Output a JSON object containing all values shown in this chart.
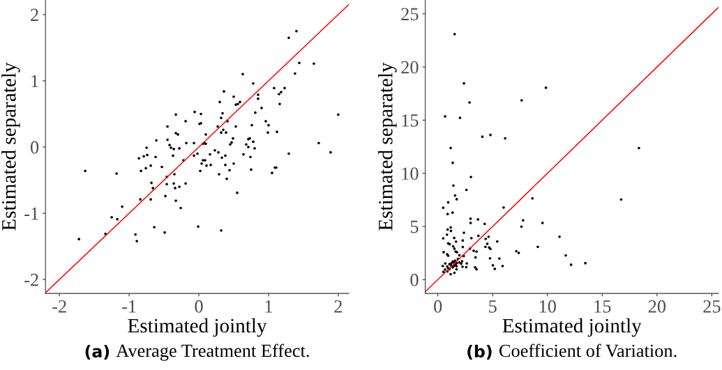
{
  "chart_data": [
    {
      "type": "scatter",
      "xlabel": "Estimated jointly",
      "ylabel": "Estimated separately",
      "annotations": [
        "(a) Average Treatment Effect."
      ],
      "xlim": [
        -2.2,
        2.15
      ],
      "ylim": [
        -2.21,
        2.22
      ],
      "xticks": [
        -2,
        -1,
        0,
        1,
        2
      ],
      "yticks": [
        -2,
        -1,
        0,
        1,
        2
      ],
      "grid": false,
      "series": [
        {
          "color": "#000000",
          "marker": "circle",
          "x": [
            -1.72,
            -1.63,
            -1.34,
            -1.25,
            -1.18,
            -1.17,
            -1.1,
            -0.91,
            -0.89,
            -0.86,
            -0.84,
            -0.83,
            -0.79,
            -0.76,
            -0.75,
            -0.74,
            -0.69,
            -0.69,
            -0.68,
            -0.66,
            -0.64,
            -0.62,
            -0.61,
            -0.53,
            -0.49,
            -0.48,
            -0.46,
            -0.46,
            -0.45,
            -0.45,
            -0.42,
            -0.4,
            -0.37,
            -0.36,
            -0.36,
            -0.35,
            -0.34,
            -0.33,
            -0.33,
            -0.33,
            -0.3,
            -0.28,
            -0.28,
            -0.26,
            -0.22,
            -0.19,
            -0.19,
            -0.18,
            -0.07,
            -0.07,
            -0.06,
            -0.02,
            -0.01,
            0.01,
            0.02,
            0.03,
            0.03,
            0.04,
            1.29,
            1.4,
            1.44,
            1.65,
            1.38,
            0.63,
            0.78,
            1.08,
            1.23,
            0.36,
            1.15,
            1.18,
            0.85,
            0.5,
            0.85,
            0.3,
            0.59,
            0.56,
            0.53,
            1.16,
            0.9,
            0.34,
            0.81,
            0.32,
            2.0,
            0.96,
            0.41,
            0.27,
            0.76,
            1.0,
            0.53,
            0.35,
            0.32,
            0.39,
            0.99,
            1.12,
            0.1,
            0.49,
            0.73,
            0.71,
            0.78,
            0.47,
            0.45,
            0.08,
            0.1,
            0.06,
            0.68,
            1.72,
            0.71,
            0.8,
            0.23,
            0.28,
            0.16,
            0.38,
            0.64,
            1.29,
            1.89,
            0.33,
            0.74,
            0.06,
            0.09,
            0.11,
            0.17,
            0.38,
            0.5,
            1.11,
            1.09,
            0.44,
            0.75,
            1.05,
            0.29,
            0.4,
            0.55,
            0.32
          ],
          "values": [
            -1.39,
            -0.36,
            -1.31,
            -1.06,
            -0.4,
            -1.09,
            -0.9,
            -1.32,
            -1.42,
            -0.17,
            -0.79,
            -0.36,
            -0.14,
            -0.32,
            -0.01,
            -0.12,
            -0.28,
            -0.79,
            -0.54,
            -0.62,
            -1.21,
            -0.15,
            0.1,
            -0.3,
            -1.29,
            -0.74,
            -0.45,
            -0.56,
            0.31,
            0.11,
            0.03,
            -0.01,
            -0.13,
            -0.03,
            -0.55,
            -0.41,
            -0.62,
            0.49,
            0.21,
            -0.81,
            0.19,
            -0.6,
            -0.02,
            -0.92,
            -0.2,
            0.39,
            -0.55,
            0.06,
            -0.13,
            0.06,
            0.53,
            -0.1,
            -1.2,
            0.35,
            -0.36,
            0.5,
            0.36,
            -0.25,
            1.65,
            1.75,
            1.27,
            1.26,
            1.11,
            1.1,
            0.96,
            0.89,
            0.89,
            0.84,
            0.8,
            0.83,
            0.79,
            0.76,
            0.73,
            0.68,
            0.68,
            0.65,
            0.64,
            0.65,
            0.59,
            0.51,
            0.52,
            0.44,
            0.49,
            0.39,
            0.39,
            0.31,
            0.33,
            0.33,
            0.31,
            0.26,
            0.22,
            0.22,
            0.22,
            0.23,
            0.19,
            0.13,
            0.13,
            0.12,
            0.08,
            0.07,
            0.04,
            0.06,
            0.05,
            0.05,
            0.04,
            0.06,
            0.0,
            -0.02,
            -0.05,
            -0.08,
            -0.11,
            -0.13,
            -0.11,
            -0.1,
            -0.08,
            -0.16,
            -0.15,
            -0.2,
            -0.2,
            -0.28,
            -0.27,
            -0.27,
            -0.25,
            -0.31,
            -0.31,
            -0.35,
            -0.34,
            -0.39,
            -0.41,
            -0.48,
            -0.69,
            -1.26
          ]
        },
        {
          "type": "line",
          "color": "#ff0000",
          "x": [
            -2.2,
            2.15
          ],
          "values": [
            -2.2,
            2.15
          ]
        }
      ]
    },
    {
      "type": "scatter",
      "xlabel": "Estimated jointly",
      "ylabel": "Estimated separately",
      "annotations": [
        "(b) Coefficient of Variation."
      ],
      "xlim": [
        -1.15,
        25.6
      ],
      "ylim": [
        -1.3,
        26.3
      ],
      "xticks": [
        0,
        5,
        10,
        15,
        20,
        25
      ],
      "yticks": [
        0,
        5,
        10,
        15,
        20,
        25
      ],
      "grid": false,
      "series": [
        {
          "color": "#000000",
          "marker": "circle",
          "x": [
            1.17,
            1.36,
            3.02,
            2.61,
            1.42,
            1.57,
            1.72,
            0.94,
            0.49,
            0.89,
            1.34,
            6.0,
            8.63,
            2.98,
            3.66,
            2.99,
            4.27,
            7.78,
            7.63,
            9.55,
            1.17,
            0.89,
            1.19,
            2.38,
            0.83,
            3.7,
            4.63,
            1.49,
            3.06,
            4.36,
            0.49,
            2.27,
            1.66,
            5.42,
            0.94,
            1.08,
            4.51,
            1.4,
            2.27,
            4.34,
            4.68,
            9.12,
            4.8,
            1.51,
            2.93,
            1.62,
            1.74,
            3.27,
            3.53,
            0.53,
            7.16,
            7.38,
            0.85,
            0.94,
            1.96,
            2.36,
            3.44,
            4.76,
            5.61,
            1.83,
            1.57,
            1.36,
            2.21,
            1.45,
            1.72,
            1.96,
            1.23,
            1.62,
            0.68,
            1.06,
            2.13,
            2.64,
            1.19,
            1.47,
            0.85,
            1.7,
            5.02,
            0.45,
            2.25,
            2.59,
            5.91,
            1.36,
            0.94,
            3.4,
            1.06,
            0.66,
            1.7,
            3.53,
            5.19,
            0.51,
            0.87,
            1.51,
            1.17,
            1.53,
            2.38,
            9.86,
            7.65,
            2.89,
            0.66,
            2.02,
            4.06,
            4.8,
            6.14,
            18.35,
            16.73,
            11.1,
            11.67,
            12.16,
            13.46
          ],
          "values": [
            12.38,
            10.99,
            9.65,
            8.44,
            8.85,
            7.91,
            7.56,
            7.27,
            6.76,
            6.17,
            6.3,
            6.78,
            7.64,
            5.73,
            5.66,
            5.33,
            5.24,
            5.57,
            4.98,
            5.33,
            4.91,
            4.71,
            4.58,
            4.41,
            4.23,
            4.12,
            4.03,
            3.92,
            3.9,
            3.83,
            3.88,
            3.68,
            3.57,
            3.59,
            3.41,
            3.33,
            3.37,
            3.13,
            3.06,
            3.08,
            3.02,
            3.08,
            2.89,
            2.91,
            2.91,
            2.64,
            2.58,
            2.71,
            2.64,
            2.58,
            2.67,
            2.51,
            2.38,
            2.25,
            2.29,
            2.22,
            2.09,
            2.0,
            1.98,
            1.94,
            1.78,
            1.7,
            1.72,
            1.63,
            1.56,
            1.61,
            1.54,
            1.41,
            1.52,
            1.45,
            1.5,
            1.52,
            1.34,
            1.3,
            1.23,
            1.26,
            1.34,
            1.28,
            1.21,
            1.17,
            1.28,
            1.15,
            1.08,
            1.15,
            0.99,
            0.95,
            0.97,
            0.97,
            1.01,
            0.73,
            0.77,
            0.64,
            0.51,
            23.09,
            18.46,
            18.05,
            16.86,
            16.66,
            15.35,
            15.22,
            13.44,
            13.61,
            13.29,
            12.37,
            7.54,
            4.03,
            2.28,
            1.4,
            1.55
          ]
        },
        {
          "type": "line",
          "color": "#ff0000",
          "x": [
            -1.15,
            25.6
          ],
          "values": [
            -1.15,
            25.6
          ]
        }
      ]
    }
  ]
}
